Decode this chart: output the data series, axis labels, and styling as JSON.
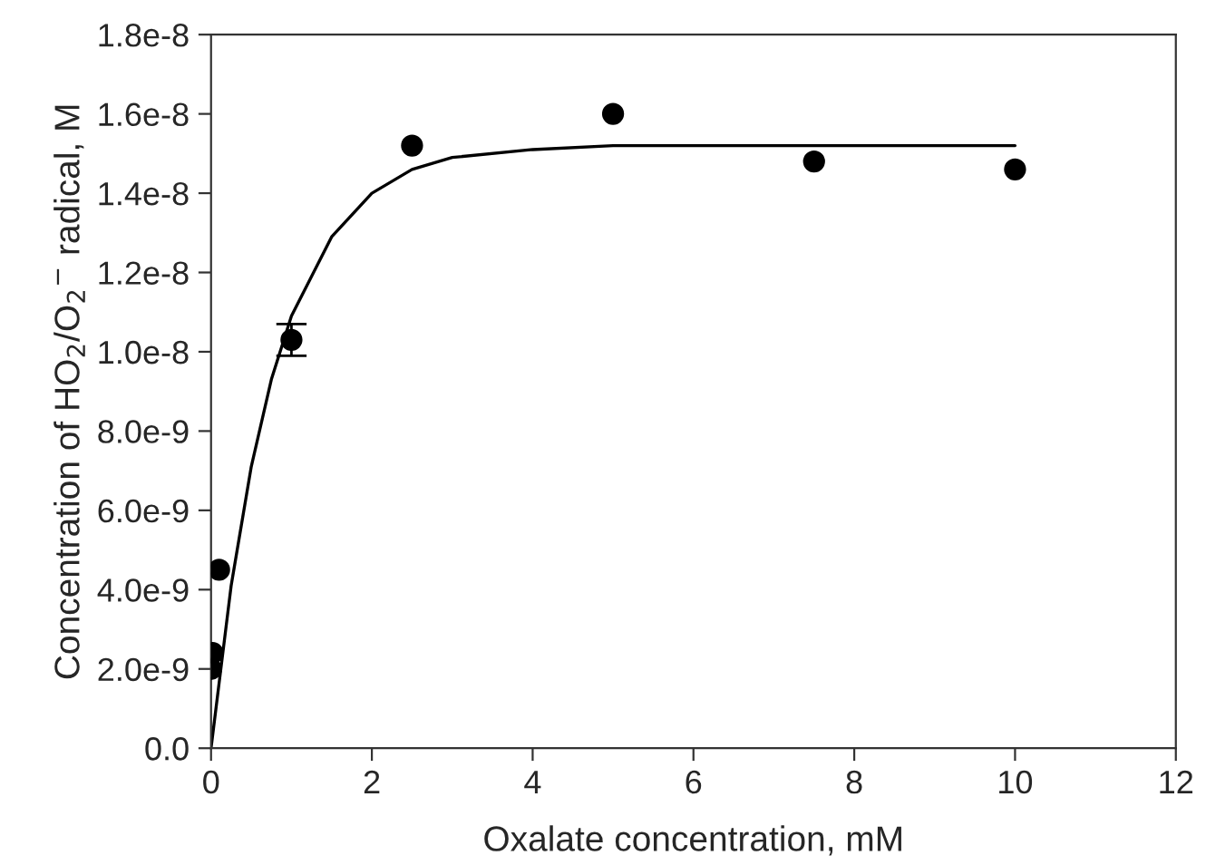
{
  "chart_data": {
    "type": "scatter",
    "xlabel": "Oxalate concentration, mM",
    "ylabel": "Concentration of HO$_{2}$/O$_{2}$$^{−}$ radical, M",
    "xlim": [
      0,
      12
    ],
    "xticks": [
      0,
      2,
      4,
      6,
      8,
      10,
      12
    ],
    "ylim": [
      0,
      1.8e-08
    ],
    "yticks": [
      {
        "value": 0,
        "label": "0.0"
      },
      {
        "value": 2e-09,
        "label": "2.0e-9"
      },
      {
        "value": 4e-09,
        "label": "4.0e-9"
      },
      {
        "value": 6e-09,
        "label": "6.0e-9"
      },
      {
        "value": 8e-09,
        "label": "8.0e-9"
      },
      {
        "value": 1e-08,
        "label": "1.0e-8"
      },
      {
        "value": 1.2e-08,
        "label": "1.2e-8"
      },
      {
        "value": 1.4e-08,
        "label": "1.4e-8"
      },
      {
        "value": 1.6e-08,
        "label": "1.6e-8"
      },
      {
        "value": 1.8e-08,
        "label": "1.8e-8"
      }
    ],
    "grid": false,
    "series": [
      {
        "color": "#000000",
        "marker": "circle",
        "x": [
          0,
          0.02,
          0.1,
          1,
          2.5,
          5,
          7.5,
          10
        ],
        "values": [
          2e-09,
          2.4e-09,
          4.5e-09,
          1.03e-08,
          1.52e-08,
          1.6e-08,
          1.48e-08,
          1.46e-08
        ],
        "errors": [
          null,
          null,
          null,
          4e-10,
          null,
          null,
          null,
          null
        ]
      },
      {
        "type": "line",
        "color": "#000000",
        "marker": "none",
        "line_style": "solid",
        "x": [
          0,
          0.25,
          0.5,
          0.75,
          1,
          1.5,
          2,
          2.5,
          3,
          4,
          5,
          7,
          10
        ],
        "values": [
          0,
          4.1e-09,
          7.1e-09,
          9.3e-09,
          1.09e-08,
          1.29e-08,
          1.4e-08,
          1.46e-08,
          1.49e-08,
          1.51e-08,
          1.52e-08,
          1.52e-08,
          1.52e-08
        ]
      }
    ]
  }
}
